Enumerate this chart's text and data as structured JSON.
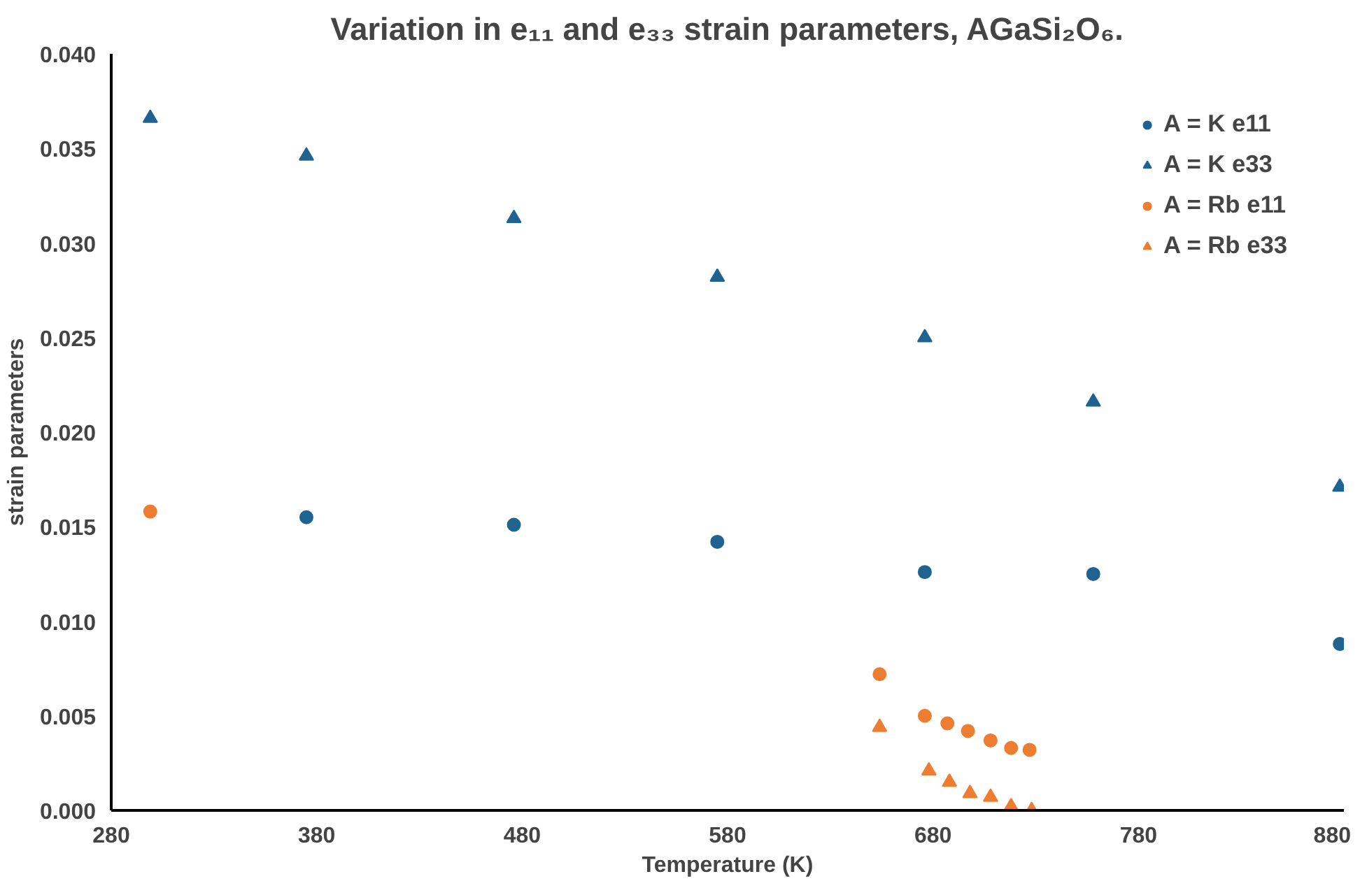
{
  "chart_data": {
    "type": "scatter",
    "title": "Variation in e₁₁ and e₃₃ strain parameters, AGaSi₂O₆.",
    "xlabel": "Temperature (K)",
    "ylabel": "strain parameters",
    "xlim": [
      280,
      880
    ],
    "xticks": [
      280,
      380,
      480,
      580,
      680,
      780,
      880
    ],
    "ylim": [
      0,
      0.04
    ],
    "yticks": [
      {
        "value": 0,
        "label": "0.000"
      },
      {
        "value": 0.005,
        "label": "0.005"
      },
      {
        "value": 0.01,
        "label": "0.010"
      },
      {
        "value": 0.015,
        "label": "0.015"
      },
      {
        "value": 0.02,
        "label": "0.020"
      },
      {
        "value": 0.025,
        "label": "0.025"
      },
      {
        "value": 0.03,
        "label": "0.030"
      },
      {
        "value": 0.035,
        "label": "0.035"
      },
      {
        "value": 0.04,
        "label": "0.040"
      }
    ],
    "grid": false,
    "legend": "top right",
    "series": [
      {
        "name": "A = K e11",
        "color": "#1f6391",
        "marker": "circle",
        "x": [
          375,
          476,
          575,
          676,
          758,
          878
        ],
        "values": [
          0.0155,
          0.0151,
          0.0142,
          0.0126,
          0.0125,
          0.0088
        ]
      },
      {
        "name": "A = K e33",
        "color": "#1f6391",
        "marker": "triangle",
        "x": [
          299,
          375,
          476,
          575,
          676,
          758,
          878
        ],
        "values": [
          0.0366,
          0.0346,
          0.0313,
          0.0282,
          0.025,
          0.0216,
          0.0171
        ]
      },
      {
        "name": "A = Rb e11",
        "color": "#ed7d31",
        "marker": "circle",
        "x": [
          299,
          654,
          676,
          687,
          697,
          708,
          718,
          727
        ],
        "values": [
          0.0158,
          0.0072,
          0.005,
          0.0046,
          0.0042,
          0.0037,
          0.0033,
          0.0032
        ]
      },
      {
        "name": "A = Rb e33",
        "color": "#ed7d31",
        "marker": "triangle",
        "x": [
          654,
          678,
          688,
          698,
          708,
          718,
          728
        ],
        "values": [
          0.0044,
          0.0021,
          0.0015,
          0.0009,
          0.0007,
          0.0002,
          0.0
        ]
      }
    ]
  }
}
